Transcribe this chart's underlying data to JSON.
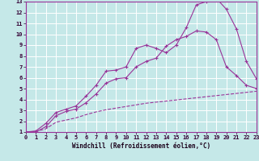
{
  "xlabel": "Windchill (Refroidissement éolien,°C)",
  "background_color": "#c5e8e8",
  "grid_color": "#ffffff",
  "line_color": "#993399",
  "xlim": [
    0,
    23
  ],
  "ylim": [
    1,
    13
  ],
  "xticks": [
    0,
    1,
    2,
    3,
    4,
    5,
    6,
    7,
    8,
    9,
    10,
    11,
    12,
    13,
    14,
    15,
    16,
    17,
    18,
    19,
    20,
    21,
    22,
    23
  ],
  "yticks": [
    1,
    2,
    3,
    4,
    5,
    6,
    7,
    8,
    9,
    10,
    11,
    12,
    13
  ],
  "curve1_x": [
    0,
    1,
    2,
    3,
    4,
    5,
    6,
    7,
    8,
    9,
    10,
    11,
    12,
    13,
    14,
    15,
    16,
    17,
    18,
    19,
    20,
    21,
    22,
    23
  ],
  "curve1_y": [
    1.0,
    1.1,
    1.8,
    2.8,
    3.1,
    3.4,
    4.3,
    5.3,
    6.6,
    6.7,
    7.0,
    8.7,
    9.0,
    8.7,
    8.3,
    9.0,
    10.6,
    12.7,
    13.0,
    13.3,
    12.3,
    10.5,
    7.5,
    5.9
  ],
  "curve2_x": [
    0,
    1,
    2,
    3,
    4,
    5,
    6,
    7,
    8,
    9,
    10,
    11,
    12,
    13,
    14,
    15,
    16,
    17,
    18,
    19,
    20,
    21,
    22,
    23
  ],
  "curve2_y": [
    1.0,
    1.0,
    1.5,
    2.5,
    2.9,
    3.1,
    3.7,
    4.5,
    5.5,
    5.9,
    6.0,
    7.0,
    7.5,
    7.8,
    8.9,
    9.5,
    9.8,
    10.3,
    10.2,
    9.5,
    7.0,
    6.2,
    5.3,
    5.0
  ],
  "curve3_x": [
    0,
    1,
    2,
    3,
    4,
    5,
    6,
    7,
    8,
    9,
    10,
    11,
    12,
    13,
    14,
    15,
    16,
    17,
    18,
    19,
    20,
    21,
    22,
    23
  ],
  "curve3_y": [
    1.0,
    1.05,
    1.3,
    1.9,
    2.1,
    2.3,
    2.6,
    2.85,
    3.05,
    3.2,
    3.35,
    3.5,
    3.65,
    3.75,
    3.85,
    3.95,
    4.05,
    4.15,
    4.25,
    4.35,
    4.45,
    4.55,
    4.65,
    4.75
  ]
}
